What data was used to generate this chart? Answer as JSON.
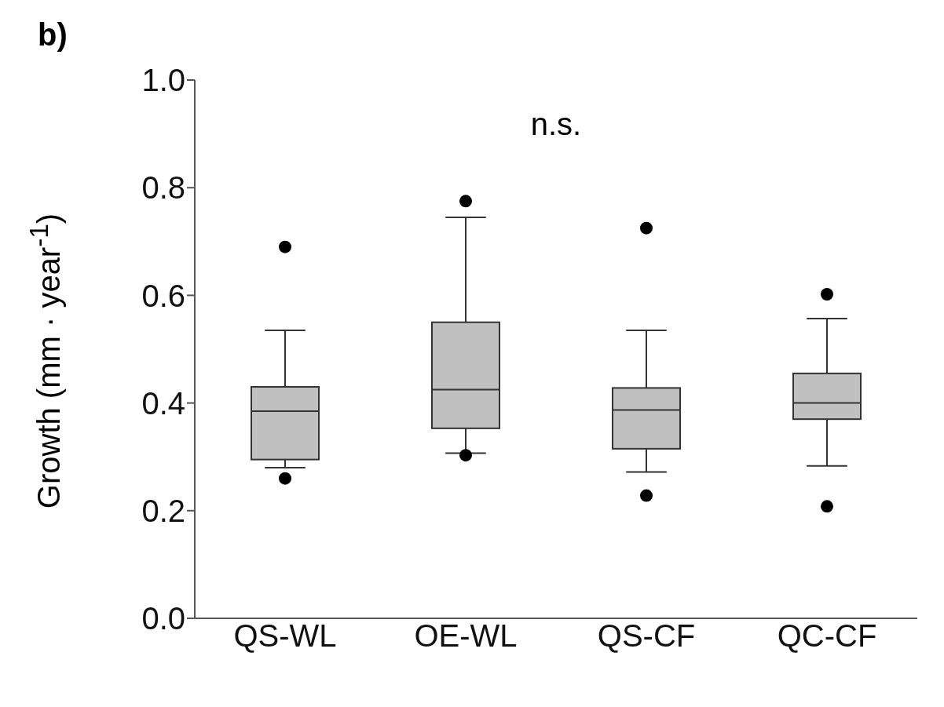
{
  "chart_data": {
    "type": "box",
    "title": "b)",
    "ylabel": "Growth (mm · year$^{-1}$)",
    "categories": [
      "QS-WL",
      "OE-WL",
      "QS-CF",
      "QC-CF"
    ],
    "color": "#c0c0c0",
    "boxes": [
      {
        "low": 0.28,
        "q1": 0.295,
        "median": 0.385,
        "q3": 0.43,
        "high": 0.535,
        "outliers": [
          0.69,
          0.26
        ]
      },
      {
        "low": 0.307,
        "q1": 0.353,
        "median": 0.425,
        "q3": 0.55,
        "high": 0.745,
        "outliers": [
          0.775,
          0.303
        ]
      },
      {
        "low": 0.272,
        "q1": 0.315,
        "median": 0.387,
        "q3": 0.428,
        "high": 0.535,
        "outliers": [
          0.725,
          0.228
        ]
      },
      {
        "low": 0.283,
        "q1": 0.37,
        "median": 0.4,
        "q3": 0.455,
        "high": 0.557,
        "outliers": [
          0.602,
          0.208
        ]
      }
    ],
    "ylim": [
      0,
      1
    ],
    "yticks": [
      {
        "value": 0,
        "label": "0.0"
      },
      0.2,
      0.4,
      0.6,
      0.8,
      {
        "value": 1,
        "label": "1.0"
      }
    ],
    "annotations": [
      "n.s."
    ]
  }
}
